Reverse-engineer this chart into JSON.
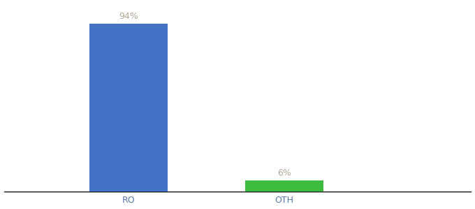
{
  "categories": [
    "RO",
    "OTH"
  ],
  "values": [
    94,
    6
  ],
  "bar_colors": [
    "#4472c4",
    "#3dbb3d"
  ],
  "value_labels": [
    "94%",
    "6%"
  ],
  "ylim": [
    0,
    105
  ],
  "background_color": "#ffffff",
  "axis_line_color": "#111111",
  "label_color": "#b0a898",
  "bar_width": 0.5,
  "figsize": [
    6.8,
    3.0
  ],
  "dpi": 100,
  "x_positions": [
    1,
    2
  ],
  "xlim": [
    0.2,
    3.2
  ]
}
